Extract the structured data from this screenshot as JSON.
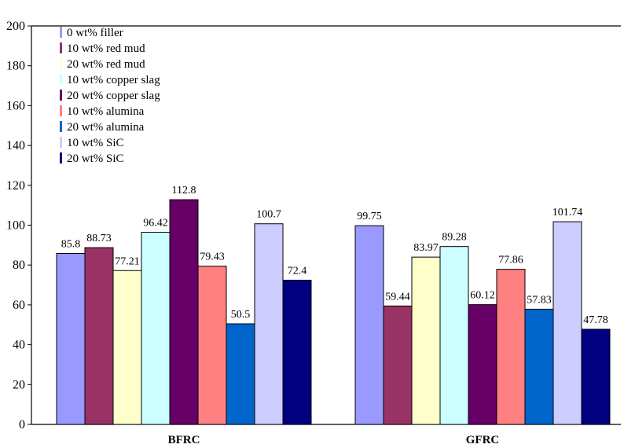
{
  "chart_data": {
    "type": "bar",
    "title": "",
    "xlabel": "",
    "ylabel": "",
    "ylim": [
      0,
      200
    ],
    "yticks": [
      "0",
      "20",
      "40",
      "60",
      "80",
      "100",
      "120",
      "140",
      "160",
      "180",
      "200"
    ],
    "grid": false,
    "legend_position": "top-left",
    "categories": [
      "BFRC",
      "GFRC"
    ],
    "series": [
      {
        "name": "0 wt%  filler",
        "color": "#9999ff",
        "values": [
          85.8,
          99.75
        ],
        "labels": [
          "85.8",
          "99.75"
        ]
      },
      {
        "name": "10 wt%  red mud",
        "color": "#993366",
        "values": [
          88.73,
          59.44
        ],
        "labels": [
          "88.73",
          "59.44"
        ]
      },
      {
        "name": "20 wt%  red mud",
        "color": "#ffffcc",
        "values": [
          77.21,
          83.97
        ],
        "labels": [
          "77.21",
          "83.97"
        ]
      },
      {
        "name": "10 wt%  copper slag",
        "color": "#ccffff",
        "values": [
          96.42,
          89.28
        ],
        "labels": [
          "96.42",
          "89.28"
        ]
      },
      {
        "name": "20 wt%  copper slag",
        "color": "#660066",
        "values": [
          112.8,
          60.12
        ],
        "labels": [
          "112.8",
          "60.12"
        ]
      },
      {
        "name": "10 wt%  alumina",
        "color": "#ff8080",
        "values": [
          79.43,
          77.86
        ],
        "labels": [
          "79.43",
          "77.86"
        ]
      },
      {
        "name": "20 wt%  alumina",
        "color": "#0066cc",
        "values": [
          50.5,
          57.83
        ],
        "labels": [
          "50.5",
          "57.83"
        ]
      },
      {
        "name": "10 wt%  SiC",
        "color": "#ccccff",
        "values": [
          100.7,
          101.74
        ],
        "labels": [
          "100.7",
          "101.74"
        ]
      },
      {
        "name": "20 wt%  SiC",
        "color": "#000080",
        "values": [
          72.4,
          47.78
        ],
        "labels": [
          "72.4",
          "47.78"
        ]
      }
    ]
  }
}
